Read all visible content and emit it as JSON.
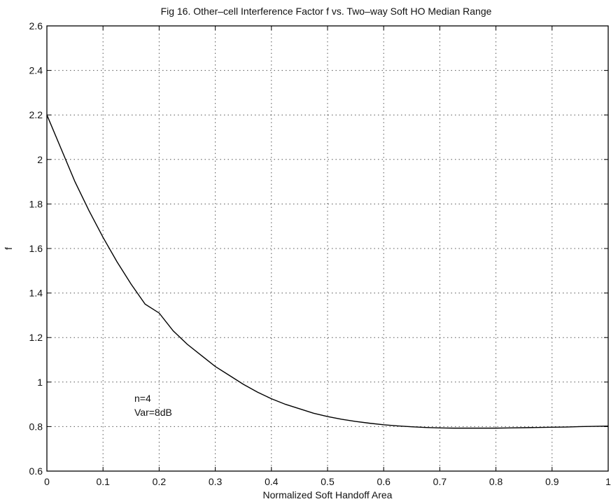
{
  "chart_data": {
    "type": "line",
    "title": "Fig 16. Other–cell Interference Factor f vs. Two–way Soft HO Median Range",
    "xlabel": "Normalized Soft Handoff Area",
    "ylabel": "f",
    "xlim": [
      0,
      1
    ],
    "ylim": [
      0.6,
      2.6
    ],
    "grid": true,
    "x_ticks": [
      0,
      0.1,
      0.2,
      0.3,
      0.4,
      0.5,
      0.6,
      0.7,
      0.8,
      0.9,
      1
    ],
    "x_tick_labels": [
      "0",
      "0.1",
      "0.2",
      "0.3",
      "0.4",
      "0.5",
      "0.6",
      "0.7",
      "0.8",
      "0.9",
      "1"
    ],
    "y_ticks": [
      0.6,
      0.8,
      1.0,
      1.2,
      1.4,
      1.6,
      1.8,
      2.0,
      2.2,
      2.4,
      2.6
    ],
    "y_tick_labels": [
      "0.6",
      "0.8",
      "1",
      "1.2",
      "1.4",
      "1.6",
      "1.8",
      "2",
      "2.2",
      "2.4",
      "2.6"
    ],
    "annotations": [
      "n=4",
      "Var=8dB"
    ],
    "series": [
      {
        "x": [
          0,
          0.025,
          0.05,
          0.075,
          0.1,
          0.125,
          0.15,
          0.175,
          0.2,
          0.225,
          0.25,
          0.275,
          0.3,
          0.325,
          0.35,
          0.375,
          0.4,
          0.425,
          0.45,
          0.475,
          0.5,
          0.525,
          0.55,
          0.575,
          0.6,
          0.625,
          0.65,
          0.675,
          0.7,
          0.725,
          0.75,
          0.775,
          0.8,
          0.825,
          0.85,
          0.875,
          0.9,
          0.925,
          0.95,
          0.975,
          1.0
        ],
        "y": [
          2.2,
          2.05,
          1.9,
          1.77,
          1.65,
          1.54,
          1.44,
          1.35,
          1.31,
          1.23,
          1.17,
          1.12,
          1.07,
          1.03,
          0.99,
          0.955,
          0.925,
          0.9,
          0.88,
          0.86,
          0.845,
          0.833,
          0.823,
          0.815,
          0.808,
          0.803,
          0.799,
          0.796,
          0.794,
          0.793,
          0.793,
          0.793,
          0.793,
          0.794,
          0.795,
          0.796,
          0.797,
          0.798,
          0.8,
          0.801,
          0.802
        ]
      }
    ]
  }
}
